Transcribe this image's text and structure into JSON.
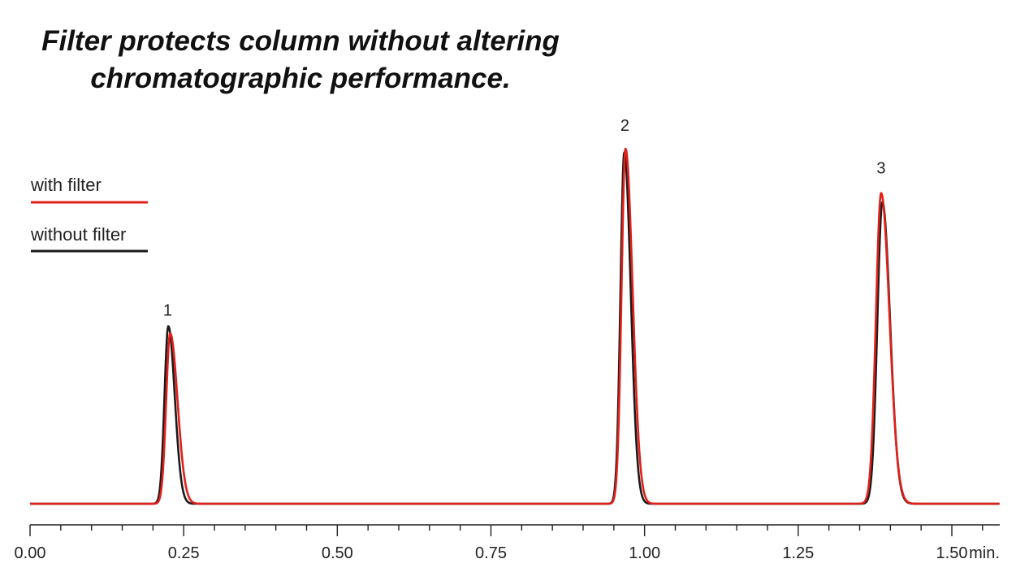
{
  "chart_data": {
    "type": "line",
    "title_lines": [
      "Filter protects column without altering",
      "chromatographic performance."
    ],
    "x_unit": "min.",
    "xlim": [
      0.0,
      1.6
    ],
    "x_ticks": [
      "0.00",
      "0.25",
      "0.50",
      "0.75",
      "1.00",
      "1.25",
      "1.50"
    ],
    "x_tick_values": [
      0.0,
      0.25,
      0.5,
      0.75,
      1.0,
      1.25,
      1.5
    ],
    "minor_tick_step": 0.05,
    "grid": false,
    "legend": {
      "position": "top-left"
    },
    "peak_labels": [
      {
        "label": "1",
        "x": 0.224,
        "y": 0.53
      },
      {
        "label": "2",
        "x": 0.968,
        "y": 1.05
      },
      {
        "label": "3",
        "x": 1.385,
        "y": 0.93
      }
    ],
    "series": [
      {
        "name": "with filter",
        "color": "#e0201b",
        "baseline": 0.0,
        "peaks": [
          {
            "rt": 0.228,
            "height": 0.48,
            "sigma_left": 0.0065,
            "sigma_right": 0.012
          },
          {
            "rt": 0.969,
            "height": 1.0,
            "sigma_left": 0.0065,
            "sigma_right": 0.0115
          },
          {
            "rt": 1.385,
            "height": 0.875,
            "sigma_left": 0.0085,
            "sigma_right": 0.0135
          }
        ]
      },
      {
        "name": "without filter",
        "color": "#1a1a1a",
        "baseline": 0.0,
        "peaks": [
          {
            "rt": 0.225,
            "height": 0.5,
            "sigma_left": 0.0062,
            "sigma_right": 0.0105
          },
          {
            "rt": 0.967,
            "height": 0.99,
            "sigma_left": 0.0062,
            "sigma_right": 0.0105
          },
          {
            "rt": 1.387,
            "height": 0.85,
            "sigma_left": 0.0082,
            "sigma_right": 0.0125
          }
        ]
      }
    ]
  }
}
